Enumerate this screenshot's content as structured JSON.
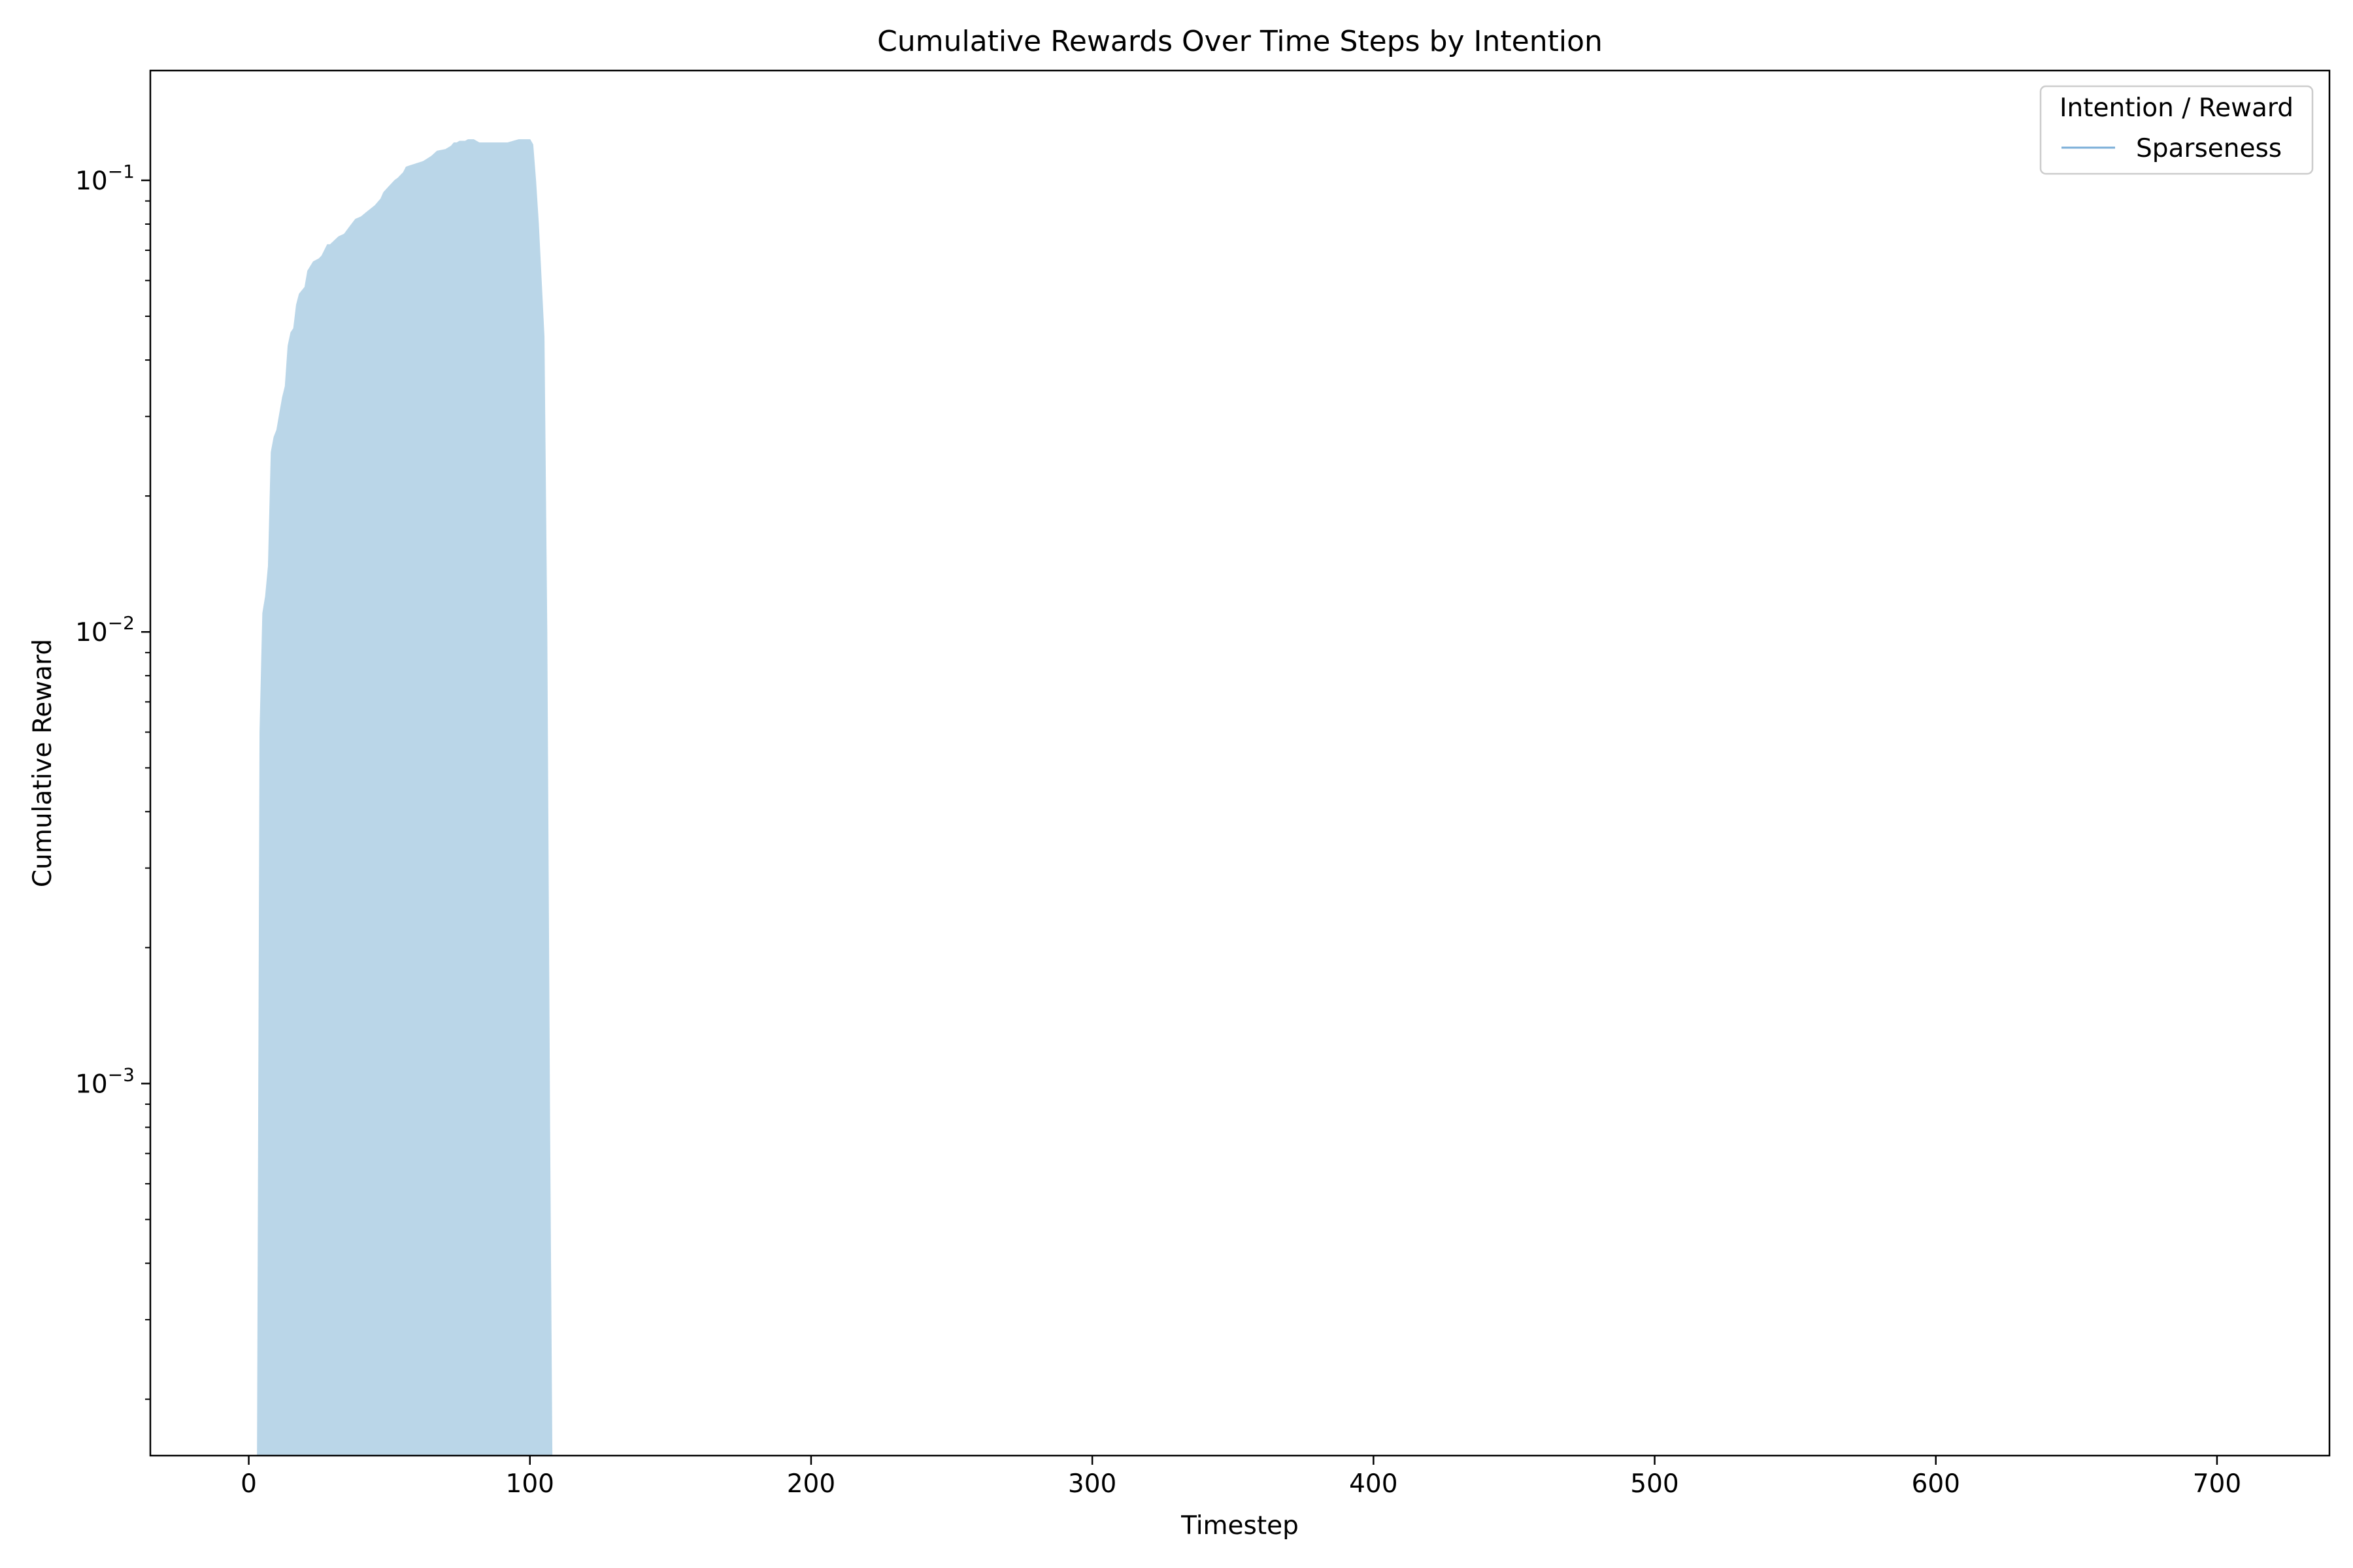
{
  "chart_data": {
    "type": "area",
    "title": "Cumulative Rewards Over Time Steps by Intention",
    "xlabel": "Timestep",
    "ylabel": "Cumulative Reward",
    "xlim": [
      -35,
      740
    ],
    "ylim": [
      0.00015,
      0.175
    ],
    "yscale": "log",
    "x_ticks": [
      0,
      100,
      200,
      300,
      400,
      500,
      600,
      700
    ],
    "y_major_ticks": [
      {
        "value": 0.001,
        "base": "10",
        "exp": "−3"
      },
      {
        "value": 0.01,
        "base": "10",
        "exp": "−2"
      },
      {
        "value": 0.1,
        "base": "10",
        "exp": "−1"
      }
    ],
    "grid": false,
    "legend": {
      "title": "Intention / Reward",
      "placement": "top-right"
    },
    "series": [
      {
        "name": "Sparseness",
        "color": "#7aaed8",
        "fill": "#bad6e8",
        "x": [
          3,
          4,
          5,
          6,
          7,
          8,
          9,
          10,
          12,
          13,
          14,
          15,
          16,
          17,
          18,
          20,
          21,
          23,
          25,
          26,
          28,
          29,
          31,
          32,
          34,
          36,
          38,
          40,
          42,
          43,
          45,
          47,
          48,
          50,
          52,
          53,
          55,
          56,
          58,
          60,
          62,
          63,
          65,
          67,
          70,
          72,
          73,
          74,
          75,
          77,
          78,
          80,
          82,
          84,
          85,
          86,
          88,
          89,
          92,
          94,
          96,
          98,
          99,
          100,
          101,
          102,
          103,
          105,
          106,
          107,
          108
        ],
        "y": [
          0.0001,
          0.006,
          0.011,
          0.012,
          0.014,
          0.025,
          0.027,
          0.028,
          0.033,
          0.035,
          0.043,
          0.046,
          0.047,
          0.053,
          0.056,
          0.058,
          0.063,
          0.066,
          0.067,
          0.068,
          0.072,
          0.072,
          0.074,
          0.075,
          0.076,
          0.079,
          0.082,
          0.083,
          0.085,
          0.086,
          0.088,
          0.091,
          0.094,
          0.097,
          0.1,
          0.101,
          0.104,
          0.107,
          0.108,
          0.109,
          0.11,
          0.111,
          0.113,
          0.116,
          0.117,
          0.119,
          0.121,
          0.121,
          0.122,
          0.122,
          0.123,
          0.123,
          0.121,
          0.121,
          0.121,
          0.121,
          0.121,
          0.121,
          0.121,
          0.122,
          0.123,
          0.123,
          0.123,
          0.123,
          0.12,
          0.1,
          0.08,
          0.045,
          0.01,
          0.0008,
          0.0001
        ]
      }
    ]
  }
}
